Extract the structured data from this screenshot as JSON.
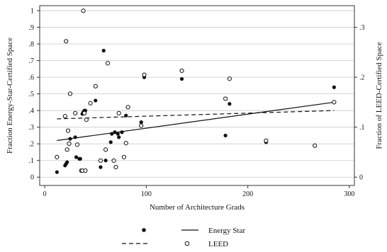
{
  "chart_data": {
    "type": "scatter",
    "xlabel": "Number of Architecture Grads",
    "ylabel_left": "Fraction Energy-Star-Certified Space",
    "ylabel_right": "Fraction of LEED-Certified Space",
    "xlim": [
      -5,
      305
    ],
    "ylim_left": [
      -0.05,
      1.03
    ],
    "ylim_right": [
      -0.0167,
      0.3433
    ],
    "x_ticks": [
      0,
      100,
      200,
      300
    ],
    "x_tick_labels": [
      "0",
      "100",
      "200",
      "300"
    ],
    "y_left_ticks": [
      0,
      0.1,
      0.2,
      0.3,
      0.4,
      0.5,
      0.6,
      0.7,
      0.8,
      0.9,
      1.0
    ],
    "y_left_tick_labels": [
      "0",
      ".1",
      ".2",
      ".3",
      ".4",
      ".5",
      ".6",
      ".7",
      ".8",
      ".9",
      "1"
    ],
    "y_right_ticks": [
      0,
      0.1,
      0.2,
      0.3
    ],
    "y_right_tick_labels": [
      "0",
      ".1",
      ".2",
      ".3"
    ],
    "grid": true,
    "legend": [
      {
        "label": "Energy Star",
        "marker": "filled-circle",
        "line": "solid"
      },
      {
        "label": "LEED",
        "marker": "hollow-circle",
        "line": "dashed"
      }
    ],
    "series": [
      {
        "name": "Energy Star",
        "axis": "left",
        "marker": "filled",
        "points": [
          [
            12,
            0.03
          ],
          [
            20,
            0.07
          ],
          [
            21,
            0.08
          ],
          [
            22,
            0.09
          ],
          [
            24,
            0.2
          ],
          [
            25,
            0.23
          ],
          [
            30,
            0.24
          ],
          [
            31,
            0.12
          ],
          [
            34,
            0.11
          ],
          [
            35,
            0.11
          ],
          [
            37,
            0.38
          ],
          [
            38,
            0.39
          ],
          [
            39,
            0.4
          ],
          [
            40,
            0.4
          ],
          [
            50,
            0.46
          ],
          [
            55,
            0.06
          ],
          [
            58,
            0.76
          ],
          [
            60,
            0.1
          ],
          [
            65,
            0.21
          ],
          [
            66,
            0.26
          ],
          [
            69,
            0.27
          ],
          [
            72,
            0.26
          ],
          [
            73,
            0.24
          ],
          [
            76,
            0.27
          ],
          [
            80,
            0.37
          ],
          [
            95,
            0.33
          ],
          [
            98,
            0.6
          ],
          [
            135,
            0.59
          ],
          [
            178,
            0.25
          ],
          [
            182,
            0.44
          ],
          [
            218,
            0.21
          ],
          [
            266,
            0.19
          ],
          [
            285,
            0.54
          ]
        ]
      },
      {
        "name": "LEED",
        "axis": "right",
        "marker": "hollow",
        "points": [
          [
            12,
            0.04
          ],
          [
            20,
            0.122
          ],
          [
            21,
            0.272
          ],
          [
            22,
            0.055
          ],
          [
            23,
            0.093
          ],
          [
            24,
            0.067
          ],
          [
            25,
            0.167
          ],
          [
            30,
            0.128
          ],
          [
            32,
            0.065
          ],
          [
            36,
            0.013
          ],
          [
            37,
            0.013
          ],
          [
            38,
            0.333
          ],
          [
            39,
            0.128
          ],
          [
            40,
            0.013
          ],
          [
            41,
            0.115
          ],
          [
            45,
            0.148
          ],
          [
            50,
            0.182
          ],
          [
            55,
            0.033
          ],
          [
            60,
            0.055
          ],
          [
            62,
            0.228
          ],
          [
            68,
            0.033
          ],
          [
            70,
            0.02
          ],
          [
            73,
            0.128
          ],
          [
            78,
            0.04
          ],
          [
            80,
            0.068
          ],
          [
            82,
            0.14
          ],
          [
            95,
            0.103
          ],
          [
            98,
            0.205
          ],
          [
            135,
            0.213
          ],
          [
            178,
            0.157
          ],
          [
            182,
            0.197
          ],
          [
            218,
            0.073
          ],
          [
            266,
            0.063
          ],
          [
            285,
            0.15
          ]
        ]
      }
    ],
    "fit_lines": [
      {
        "name": "Energy Star",
        "axis": "left",
        "style": "solid",
        "x": [
          12,
          285
        ],
        "y": [
          0.22,
          0.45
        ]
      },
      {
        "name": "LEED",
        "axis": "left",
        "style": "dashed",
        "x": [
          12,
          285
        ],
        "y": [
          0.35,
          0.4
        ]
      }
    ]
  }
}
